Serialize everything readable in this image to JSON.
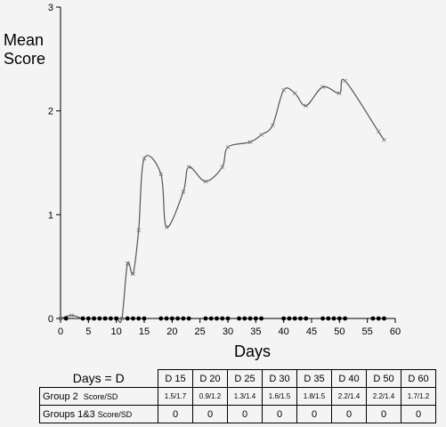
{
  "chart_data": {
    "type": "line",
    "title": "",
    "ylabel_lines": [
      "Mean",
      "Score"
    ],
    "xlabel": "Days",
    "xlim": [
      0,
      60
    ],
    "ylim": [
      0,
      3
    ],
    "xticks": [
      0,
      5,
      10,
      15,
      20,
      25,
      30,
      35,
      40,
      45,
      50,
      55,
      60
    ],
    "yticks": [
      0,
      1,
      2,
      3
    ],
    "grid": false,
    "legend": "none",
    "series": [
      {
        "style": "line with cross markers",
        "x": [
          0,
          2,
          4,
          6,
          8,
          10,
          11,
          12,
          13,
          14,
          15,
          18,
          19,
          22,
          23,
          26,
          29,
          30,
          34,
          36,
          38,
          40,
          42,
          44,
          47,
          50,
          51,
          57,
          58
        ],
        "y": [
          0,
          0.03,
          0,
          0,
          0,
          0,
          0,
          0.53,
          0.43,
          0.85,
          1.54,
          1.39,
          0.88,
          1.22,
          1.46,
          1.32,
          1.46,
          1.65,
          1.7,
          1.77,
          1.86,
          2.2,
          2.17,
          2.05,
          2.23,
          2.17,
          2.29,
          1.8,
          1.72
        ]
      },
      {
        "style": "dots",
        "x": [
          1,
          4,
          5,
          6,
          7,
          8,
          9,
          10,
          12,
          13,
          14,
          15,
          18,
          19,
          20,
          21,
          22,
          23,
          26,
          27,
          28,
          29,
          30,
          32,
          33,
          34,
          35,
          36,
          40,
          41,
          42,
          43,
          44,
          47,
          48,
          49,
          50,
          51,
          56,
          57,
          58
        ],
        "y": [
          0,
          0,
          0,
          0,
          0,
          0,
          0,
          0,
          0,
          0,
          0,
          0,
          0,
          0,
          0,
          0,
          0,
          0,
          0,
          0,
          0,
          0,
          0,
          0,
          0,
          0,
          0,
          0,
          0,
          0,
          0,
          0,
          0,
          0,
          0,
          0,
          0,
          0,
          0,
          0,
          0
        ]
      }
    ]
  },
  "summary_table": {
    "header_label": "Days = D",
    "columns": [
      "D 15",
      "D 20",
      "D 25",
      "D 30",
      "D 35",
      "D 40",
      "D 50",
      "D 60"
    ],
    "rows": [
      {
        "label": "Group 2",
        "sublabel": "Score/SD",
        "values": [
          "1.5/1.7",
          "0.9/1.2",
          "1.3/1.4",
          "1.6/1.5",
          "1.8/1.5",
          "2.2/1.4",
          "2.2/1.4",
          "1.7/1.2"
        ]
      },
      {
        "label": "Groups 1&3",
        "sublabel": "Score/SD",
        "values": [
          "0",
          "0",
          "0",
          "0",
          "0",
          "0",
          "0",
          "0"
        ]
      }
    ]
  }
}
